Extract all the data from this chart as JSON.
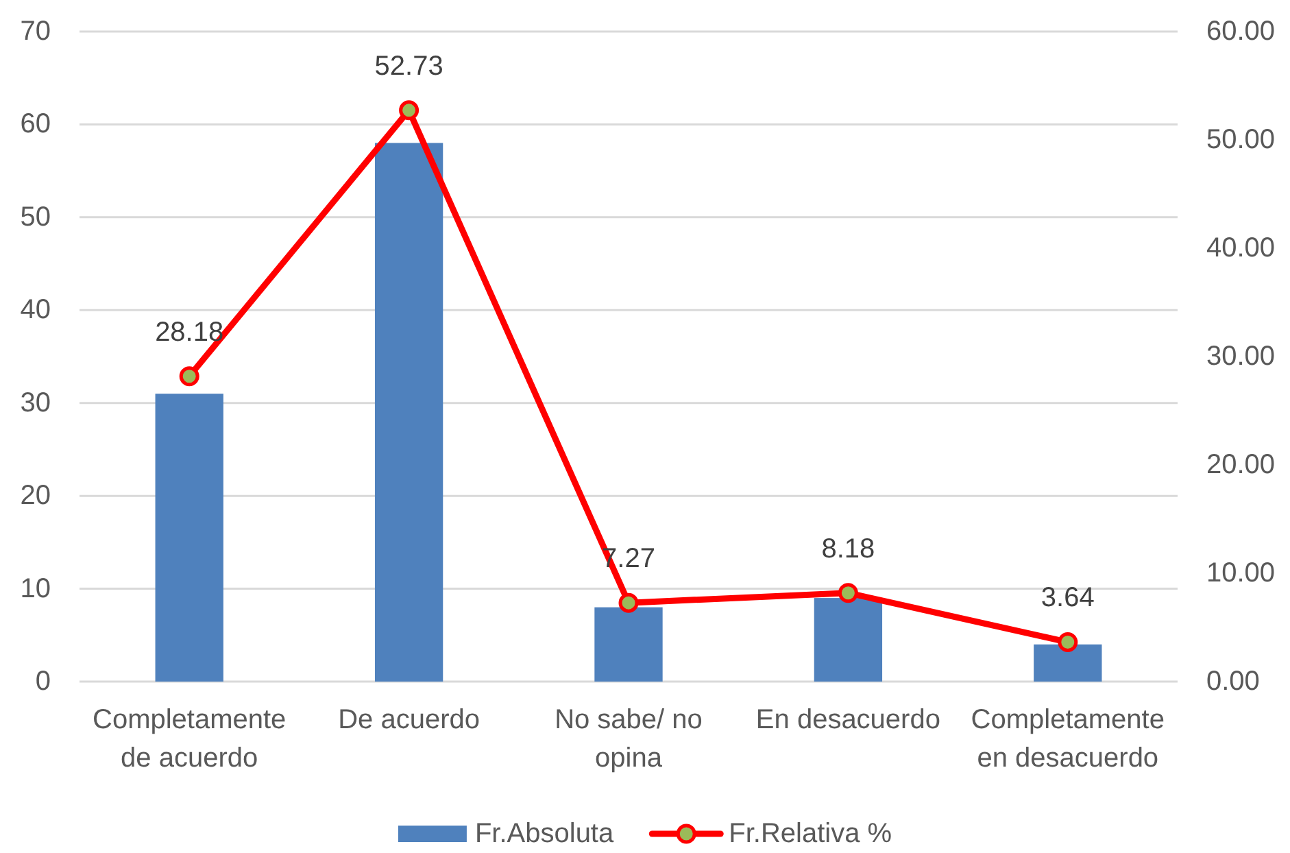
{
  "chart_data": {
    "type": "bar",
    "categories": [
      "Completamente de acuerdo",
      "De acuerdo",
      "No sabe/ no opina",
      "En desacuerdo",
      "Completamente en desacuerdo"
    ],
    "series": [
      {
        "name": "Fr.Absoluta",
        "color": "#4f81bd",
        "values": [
          31,
          58,
          8,
          9,
          4
        ]
      },
      {
        "name": "Fr.Relativa %",
        "type": "line",
        "axis": "y2",
        "color": "#ff0000",
        "values": [
          28.18,
          52.73,
          7.27,
          8.18,
          3.64
        ],
        "value_labels": [
          "28.18",
          "52.73",
          "7.27",
          "8.18",
          "3.64"
        ]
      }
    ],
    "ylim": [
      0,
      70
    ],
    "yticks": [
      0,
      10,
      20,
      30,
      40,
      50,
      60,
      70
    ],
    "y2lim": [
      0,
      60
    ],
    "y2ticks": [
      {
        "value": 0,
        "label": "0.00"
      },
      {
        "value": 10,
        "label": "10.00"
      },
      {
        "value": 20,
        "label": "20.00"
      },
      {
        "value": 30,
        "label": "30.00"
      },
      {
        "value": 40,
        "label": "40.00"
      },
      {
        "value": 50,
        "label": "50.00"
      },
      {
        "value": 60,
        "label": "60.00"
      }
    ],
    "grid": "y",
    "legend": "bottom",
    "marker": "circle",
    "line_style": "solid"
  }
}
